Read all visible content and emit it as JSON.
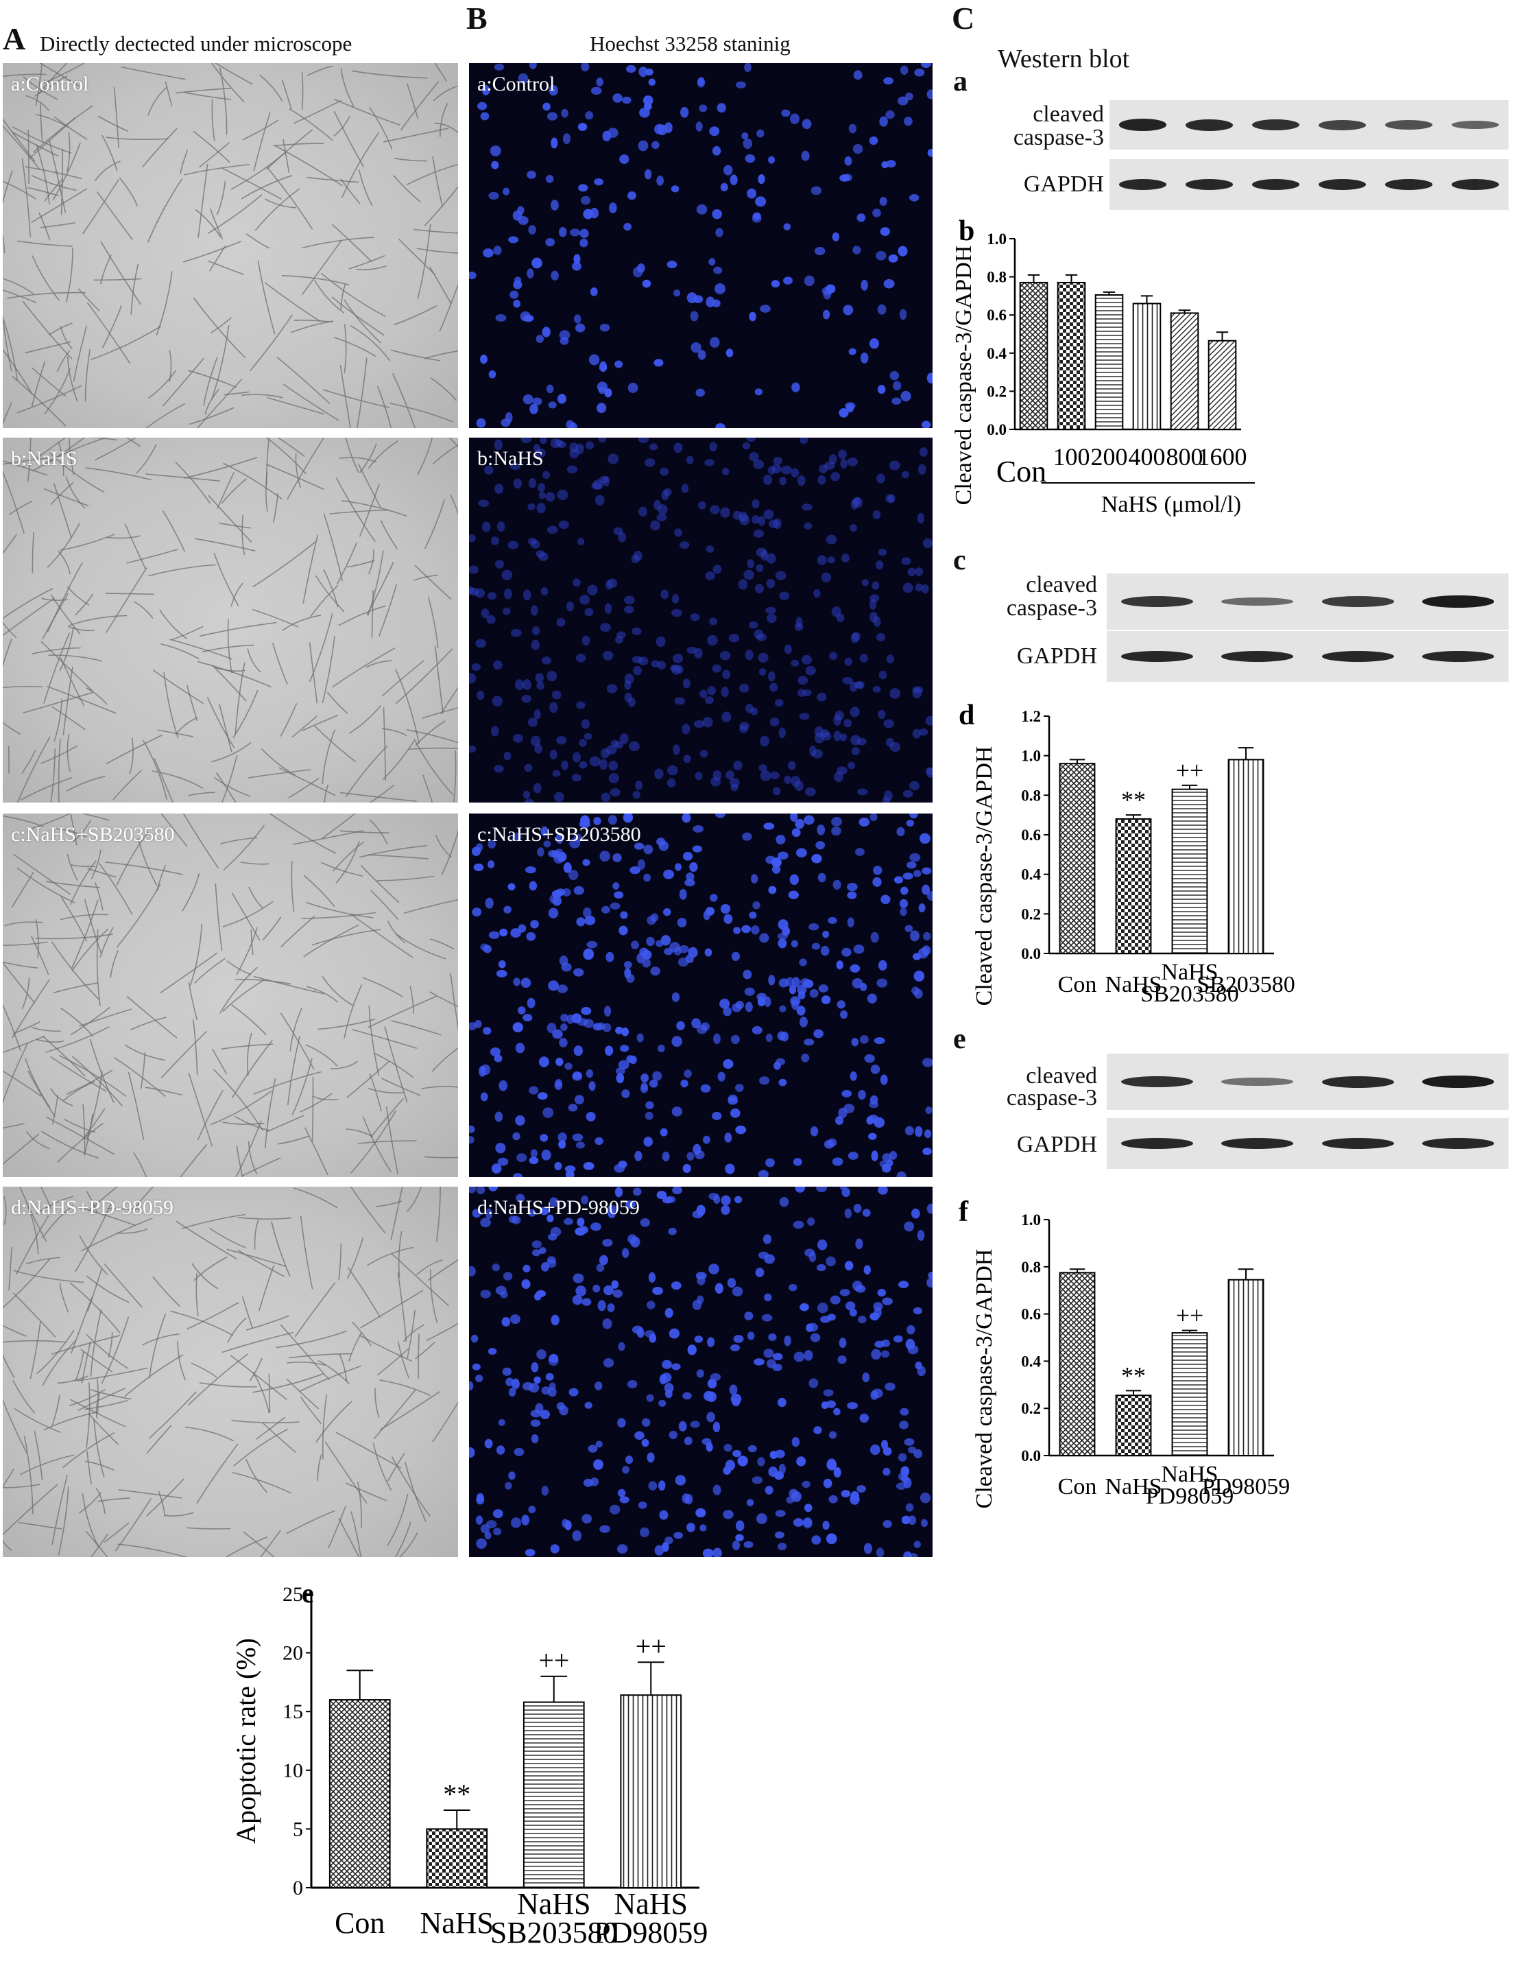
{
  "panels": {
    "A": {
      "letter": "A",
      "title": "Directly dectected under microscope",
      "images": [
        "a:Control",
        "b:NaHS",
        "c:NaHS+SB203580",
        "d:NaHS+PD-98059"
      ]
    },
    "B": {
      "letter": "B",
      "title": "Hoechst 33258 staninig",
      "images": [
        "a:Control",
        "b:NaHS",
        "c:NaHS+SB203580",
        "d:NaHS+PD-98059"
      ]
    },
    "C": {
      "letter": "C",
      "title": "Western blot"
    }
  },
  "blots": {
    "a": {
      "letter": "a",
      "label1": "cleaved",
      "label2": "caspase-3",
      "label3": "GAPDH",
      "lanes": 6,
      "caspase_intensity": [
        0.95,
        0.9,
        0.85,
        0.7,
        0.6,
        0.45
      ]
    },
    "c": {
      "letter": "c",
      "label1": "cleaved",
      "label2": "caspase-3",
      "label3": "GAPDH",
      "lanes": 4,
      "caspase_intensity": [
        0.8,
        0.4,
        0.75,
        1.0
      ]
    },
    "e": {
      "letter": "e",
      "label1": "cleaved",
      "label2": "caspase-3",
      "label3": "GAPDH",
      "lanes": 4,
      "caspase_intensity": [
        0.85,
        0.35,
        0.9,
        1.0
      ]
    }
  },
  "chart_data": [
    {
      "id": "Cb",
      "letter": "b",
      "type": "bar",
      "categories": [
        "Con",
        "100",
        "200",
        "400",
        "800",
        "1600"
      ],
      "values": [
        0.77,
        0.77,
        0.705,
        0.66,
        0.61,
        0.465
      ],
      "errors": [
        0.04,
        0.04,
        0.015,
        0.04,
        0.015,
        0.045
      ],
      "ylabel": "Cleaved caspase-3/GAPDH",
      "xlabel": "NaHS (μmol/l)",
      "ylim": [
        0,
        1.0
      ],
      "yticks": [
        "0.0",
        "0.2",
        "0.4",
        "0.6",
        "0.8",
        "1.0"
      ],
      "patterns": [
        "crosshatch",
        "checker",
        "horizontal",
        "vertical",
        "diagonal",
        "diagonal"
      ],
      "marks": [
        "",
        "",
        "",
        "",
        "",
        ""
      ]
    },
    {
      "id": "Cd",
      "letter": "d",
      "type": "bar",
      "categories": [
        "Con",
        "NaHS",
        "NaHS\nSB203580",
        "SB203580"
      ],
      "values": [
        0.96,
        0.68,
        0.83,
        0.98
      ],
      "errors": [
        0.02,
        0.02,
        0.02,
        0.06
      ],
      "ylabel": "Cleaved caspase-3/GAPDH",
      "ylim": [
        0,
        1.2
      ],
      "yticks": [
        "0.0",
        "0.2",
        "0.4",
        "0.6",
        "0.8",
        "1.0",
        "1.2"
      ],
      "patterns": [
        "crosshatch",
        "checker",
        "horizontal",
        "vertical"
      ],
      "marks": [
        "",
        "**",
        "++",
        ""
      ]
    },
    {
      "id": "Cf",
      "letter": "f",
      "type": "bar",
      "categories": [
        "Con",
        "NaHS",
        "NaHS\nPD98059",
        "PD98059"
      ],
      "values": [
        0.775,
        0.255,
        0.52,
        0.745
      ],
      "errors": [
        0.015,
        0.02,
        0.01,
        0.045
      ],
      "ylabel": "Cleaved caspase-3/GAPDH",
      "ylim": [
        0,
        1.0
      ],
      "yticks": [
        "0.0",
        "0.2",
        "0.4",
        "0.6",
        "0.8",
        "1.0"
      ],
      "patterns": [
        "crosshatch",
        "checker",
        "horizontal",
        "vertical"
      ],
      "marks": [
        "",
        "**",
        "++",
        ""
      ]
    },
    {
      "id": "Ae",
      "letter": "e",
      "type": "bar",
      "categories": [
        "Con",
        "NaHS",
        "NaHS\nSB203580",
        "NaHS\nPD98059"
      ],
      "values": [
        16,
        5,
        15.8,
        16.4
      ],
      "errors": [
        2.5,
        1.6,
        2.2,
        2.8
      ],
      "ylabel": "Apoptotic rate (%)",
      "ylim": [
        0,
        25
      ],
      "yticks": [
        "0",
        "5",
        "10",
        "15",
        "20",
        "25"
      ],
      "patterns": [
        "crosshatch",
        "checker",
        "horizontal",
        "vertical"
      ],
      "marks": [
        "",
        "**",
        "++",
        "++"
      ]
    }
  ]
}
